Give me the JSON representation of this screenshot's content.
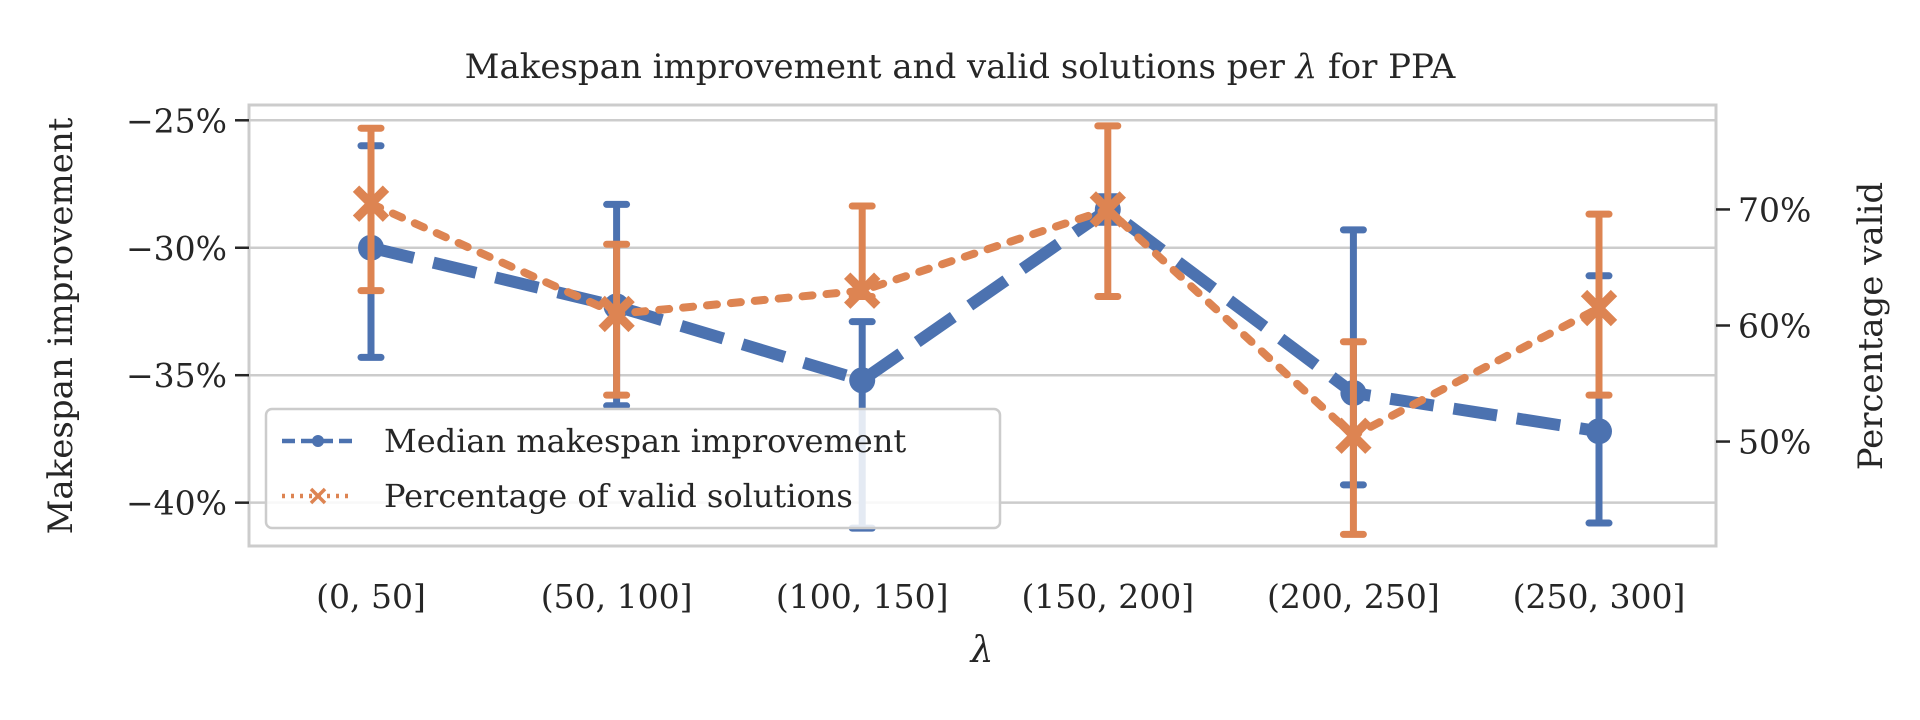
{
  "chart_data": {
    "type": "line",
    "title_prefix": "Makespan improvement and valid solutions per ",
    "title_symbol": "λ",
    "title_suffix": " for PPA",
    "xlabel": "λ",
    "ylabel_left": "Makespan improvement",
    "ylabel_right": "Percentage valid",
    "categories": [
      "(0, 50]",
      "(50, 100]",
      "(100, 150]",
      "(150, 200]",
      "(200, 250]",
      "(250, 300]"
    ],
    "left_axis": {
      "ylim": [
        -41.7,
        -24.4
      ],
      "ticks": [
        -25,
        -30,
        -35,
        -40
      ],
      "tick_labels": [
        "−25%",
        "−30%",
        "−35%",
        "−40%"
      ]
    },
    "right_axis": {
      "ylim": [
        41.0,
        79.0
      ],
      "ticks": [
        70,
        60,
        50
      ],
      "tick_labels": [
        "70%",
        "60%",
        "50%"
      ]
    },
    "series": [
      {
        "name": "Median makespan improvement",
        "axis": "left",
        "color": "#4c72b0",
        "line_style": "dashed",
        "marker": "circle",
        "values": [
          -30.0,
          -32.3,
          -35.2,
          -28.5,
          -35.7,
          -37.2
        ],
        "err_low": [
          -34.3,
          -36.2,
          -41.0,
          -29.0,
          -39.3,
          -40.8
        ],
        "err_high": [
          -26.0,
          -28.3,
          -32.9,
          -28.0,
          -29.3,
          -31.1
        ]
      },
      {
        "name": "Percentage of valid solutions",
        "axis": "right",
        "color": "#dd8452",
        "line_style": "dotted",
        "marker": "x",
        "values": [
          70.5,
          61.0,
          63.0,
          70.0,
          50.5,
          61.5
        ],
        "err_low": [
          63.0,
          54.0,
          62.5,
          62.5,
          42.0,
          54.0
        ],
        "err_high": [
          77.0,
          67.0,
          70.3,
          77.2,
          58.6,
          69.6
        ]
      }
    ],
    "grid": true,
    "legend_position": "lower-left"
  }
}
